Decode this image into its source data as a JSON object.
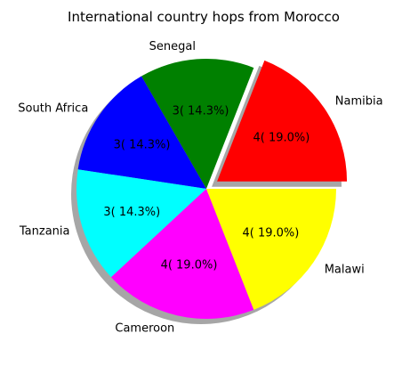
{
  "chart_data": {
    "type": "pie",
    "title": "International country hops from Morocco",
    "categories": [
      "Namibia",
      "Senegal",
      "South Africa",
      "Tanzania",
      "Cameroon",
      "Malawi"
    ],
    "values": [
      4,
      3,
      3,
      3,
      4,
      4
    ],
    "value_labels": [
      "4( 19.0%)",
      "3( 14.3%)",
      "3( 14.3%)",
      "3( 14.3%)",
      "4( 19.0%)",
      "4( 19.0%)"
    ],
    "colors": [
      "#ff0000",
      "#008000",
      "#0000ff",
      "#00ffff",
      "#ff00ff",
      "#ffff00"
    ],
    "exploded": [
      "Namibia"
    ],
    "shadow": true,
    "start_angle_deg": 0,
    "direction": "counterclockwise"
  }
}
